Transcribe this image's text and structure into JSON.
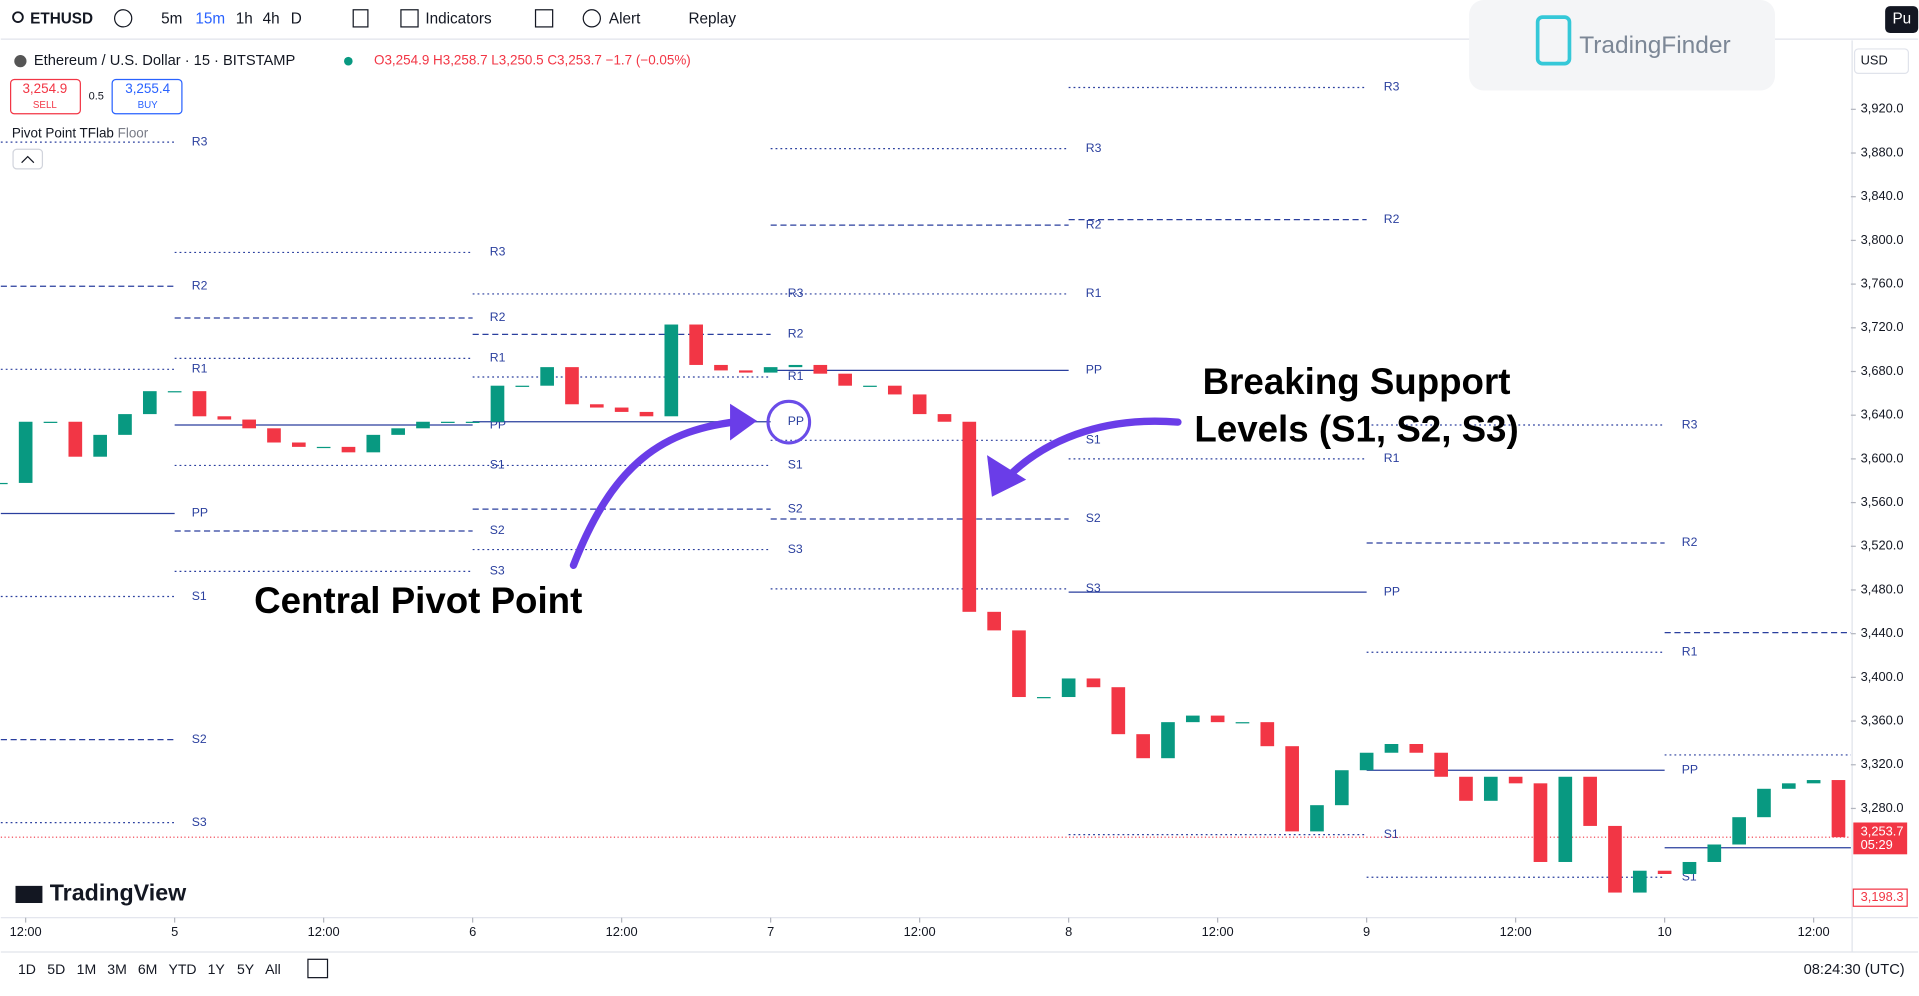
{
  "toolbar": {
    "symbol": "ETHUSD",
    "intervals": [
      "5m",
      "15m",
      "1h",
      "4h",
      "D"
    ],
    "indicators": "Indicators",
    "alert": "Alert",
    "replay": "Replay",
    "profile": "Pu"
  },
  "legend": {
    "name": "Ethereum / U.S. Dollar · 15 · BITSTAMP",
    "ohlc": "O3,254.9 H3,258.7 L3,250.5 C3,253.7 −1.7 (−0.05%)",
    "sell_price": "3,254.9",
    "sell": "SELL",
    "spread": "0.5",
    "buy_price": "3,255.4",
    "buy": "BUY",
    "indicator": "Pivot Point TFlab",
    "indicator_type": "Floor"
  },
  "watermark": "TradingFinder",
  "logo": "TradingView",
  "currency": "USD",
  "chart_data": {
    "type": "candlestick",
    "x_start": -2,
    "x_step": 2,
    "values": [
      3578,
      3634,
      3634,
      3602,
      3622,
      3641,
      3662,
      3662,
      3639,
      3636,
      3628,
      3615,
      3611,
      3611,
      3606,
      3622,
      3628,
      3634,
      3634,
      3634,
      3667,
      3667,
      3684,
      3650,
      3647,
      3643,
      3639,
      3723,
      3686,
      3681,
      3679,
      3684,
      3686,
      3678,
      3667,
      3667,
      3659,
      3641,
      3634,
      3460,
      3443,
      3382,
      3382,
      3399,
      3391,
      3348,
      3326,
      3359,
      3365,
      3359,
      3359,
      3337,
      3259,
      3283,
      3315,
      3331,
      3339,
      3331,
      3309,
      3287,
      3309,
      3303,
      3231,
      3309,
      3264,
      3203,
      3223,
      3220,
      3231,
      3247,
      3272,
      3298,
      3303,
      3306,
      3253.7
    ],
    "up_color": "#089981",
    "down_color": "#f23645",
    "xlim": [
      -2,
      147
    ],
    "ylim": [
      3180,
      3982
    ],
    "xticks": [
      {
        "value": 0,
        "label": "12:00"
      },
      {
        "value": 12,
        "label": "5"
      },
      {
        "value": 24,
        "label": "12:00"
      },
      {
        "value": 36,
        "label": "6"
      },
      {
        "value": 48,
        "label": "12:00"
      },
      {
        "value": 60,
        "label": "7"
      },
      {
        "value": 72,
        "label": "12:00"
      },
      {
        "value": 84,
        "label": "8"
      },
      {
        "value": 96,
        "label": "12:00"
      },
      {
        "value": 108,
        "label": "9"
      },
      {
        "value": 120,
        "label": "12:00"
      },
      {
        "value": 132,
        "label": "10"
      },
      {
        "value": 144,
        "label": "12:00"
      }
    ],
    "yticks": [
      {
        "value": 3280,
        "label": "3,280.0"
      },
      {
        "value": 3320,
        "label": "3,320.0"
      },
      {
        "value": 3360,
        "label": "3,360.0"
      },
      {
        "value": 3400,
        "label": "3,400.0"
      },
      {
        "value": 3440,
        "label": "3,440.0"
      },
      {
        "value": 3480,
        "label": "3,480.0"
      },
      {
        "value": 3520,
        "label": "3,520.0"
      },
      {
        "value": 3560,
        "label": "3,560.0"
      },
      {
        "value": 3600,
        "label": "3,600.0"
      },
      {
        "value": 3640,
        "label": "3,640.0"
      },
      {
        "value": 3680,
        "label": "3,680.0"
      },
      {
        "value": 3720,
        "label": "3,720.0"
      },
      {
        "value": 3760,
        "label": "3,760.0"
      },
      {
        "value": 3800,
        "label": "3,800.0"
      },
      {
        "value": 3840,
        "label": "3,840.0"
      },
      {
        "value": 3880,
        "label": "3,880.0"
      },
      {
        "value": 3920,
        "label": "3,920.0"
      }
    ],
    "current_price": {
      "value": 3253.7,
      "label": "3,253.7"
    },
    "countdown": "05:29",
    "low_marker": {
      "value": 3198.3,
      "label": "3,198.3"
    },
    "pivot_color": "#2a3f9e",
    "pivots": [
      {
        "start": -2,
        "end": 12,
        "levels": [
          {
            "name": "R3",
            "value": 3890,
            "style": "dotted"
          },
          {
            "name": "R2",
            "value": 3758,
            "style": "dashed"
          },
          {
            "name": "R1",
            "value": 3682,
            "style": "dotted"
          },
          {
            "name": "PP",
            "value": 3550,
            "style": "solid"
          },
          {
            "name": "S1",
            "value": 3474,
            "style": "dotted"
          },
          {
            "name": "S2",
            "value": 3343,
            "style": "dashed"
          },
          {
            "name": "S3",
            "value": 3267,
            "style": "dotted"
          }
        ]
      },
      {
        "start": 12,
        "end": 36,
        "levels": [
          {
            "name": "R3",
            "value": 3789,
            "style": "dotted"
          },
          {
            "name": "R2",
            "value": 3729,
            "style": "dashed"
          },
          {
            "name": "R1",
            "value": 3692,
            "style": "dotted"
          },
          {
            "name": "PP",
            "value": 3631,
            "style": "solid"
          },
          {
            "name": "S1",
            "value": 3594,
            "style": "dotted"
          },
          {
            "name": "S2",
            "value": 3534,
            "style": "dashed"
          },
          {
            "name": "S3",
            "value": 3497,
            "style": "dotted"
          }
        ]
      },
      {
        "start": 36,
        "end": 60,
        "levels": [
          {
            "name": "R3",
            "value": 3751,
            "style": "dotted"
          },
          {
            "name": "R2",
            "value": 3714,
            "style": "dashed"
          },
          {
            "name": "R1",
            "value": 3675,
            "style": "dotted"
          },
          {
            "name": "PP",
            "value": 3634,
            "style": "solid"
          },
          {
            "name": "S1",
            "value": 3594,
            "style": "dotted"
          },
          {
            "name": "S2",
            "value": 3554,
            "style": "dashed"
          },
          {
            "name": "S3",
            "value": 3517,
            "style": "dotted"
          }
        ]
      },
      {
        "start": 60,
        "end": 84,
        "levels": [
          {
            "name": "R3",
            "value": 3884,
            "style": "dotted"
          },
          {
            "name": "R2",
            "value": 3814,
            "style": "dashed"
          },
          {
            "name": "R1",
            "value": 3751,
            "style": "dotted"
          },
          {
            "name": "PP",
            "value": 3681,
            "style": "solid"
          },
          {
            "name": "S1",
            "value": 3617,
            "style": "dotted"
          },
          {
            "name": "S2",
            "value": 3545,
            "style": "dashed"
          },
          {
            "name": "S3",
            "value": 3481,
            "style": "dotted"
          }
        ]
      },
      {
        "start": 84,
        "end": 108,
        "levels": [
          {
            "name": "R3",
            "value": 3940,
            "style": "dotted"
          },
          {
            "name": "R2",
            "value": 3819,
            "style": "dashed"
          },
          {
            "name": "R1",
            "value": 3600,
            "style": "dotted"
          },
          {
            "name": "PP",
            "value": 3478,
            "style": "solid"
          },
          {
            "name": "S1",
            "value": 3256,
            "style": "dotted"
          }
        ]
      },
      {
        "start": 108,
        "end": 132,
        "levels": [
          {
            "name": "R3",
            "value": 3631,
            "style": "dotted"
          },
          {
            "name": "R2",
            "value": 3523,
            "style": "dashed"
          },
          {
            "name": "R1",
            "value": 3423,
            "style": "dotted"
          },
          {
            "name": "PP",
            "value": 3315,
            "style": "solid"
          },
          {
            "name": "S1",
            "value": 3217,
            "style": "dotted"
          }
        ]
      },
      {
        "start": 132,
        "end": 147,
        "levels": [
          {
            "value": 3441,
            "style": "dashed"
          },
          {
            "value": 3329,
            "style": "dotted"
          },
          {
            "value": 3244,
            "style": "solid"
          }
        ]
      }
    ]
  },
  "annotations": {
    "central": "Central Pivot Point",
    "breaking": [
      "Breaking Support",
      "Levels (S1, S2, S3)"
    ],
    "circle": "PP"
  },
  "bottom_bar": {
    "ranges": [
      "1D",
      "5D",
      "1M",
      "3M",
      "6M",
      "YTD",
      "1Y",
      "5Y",
      "All"
    ],
    "clock": "08:24:30 (UTC)"
  }
}
